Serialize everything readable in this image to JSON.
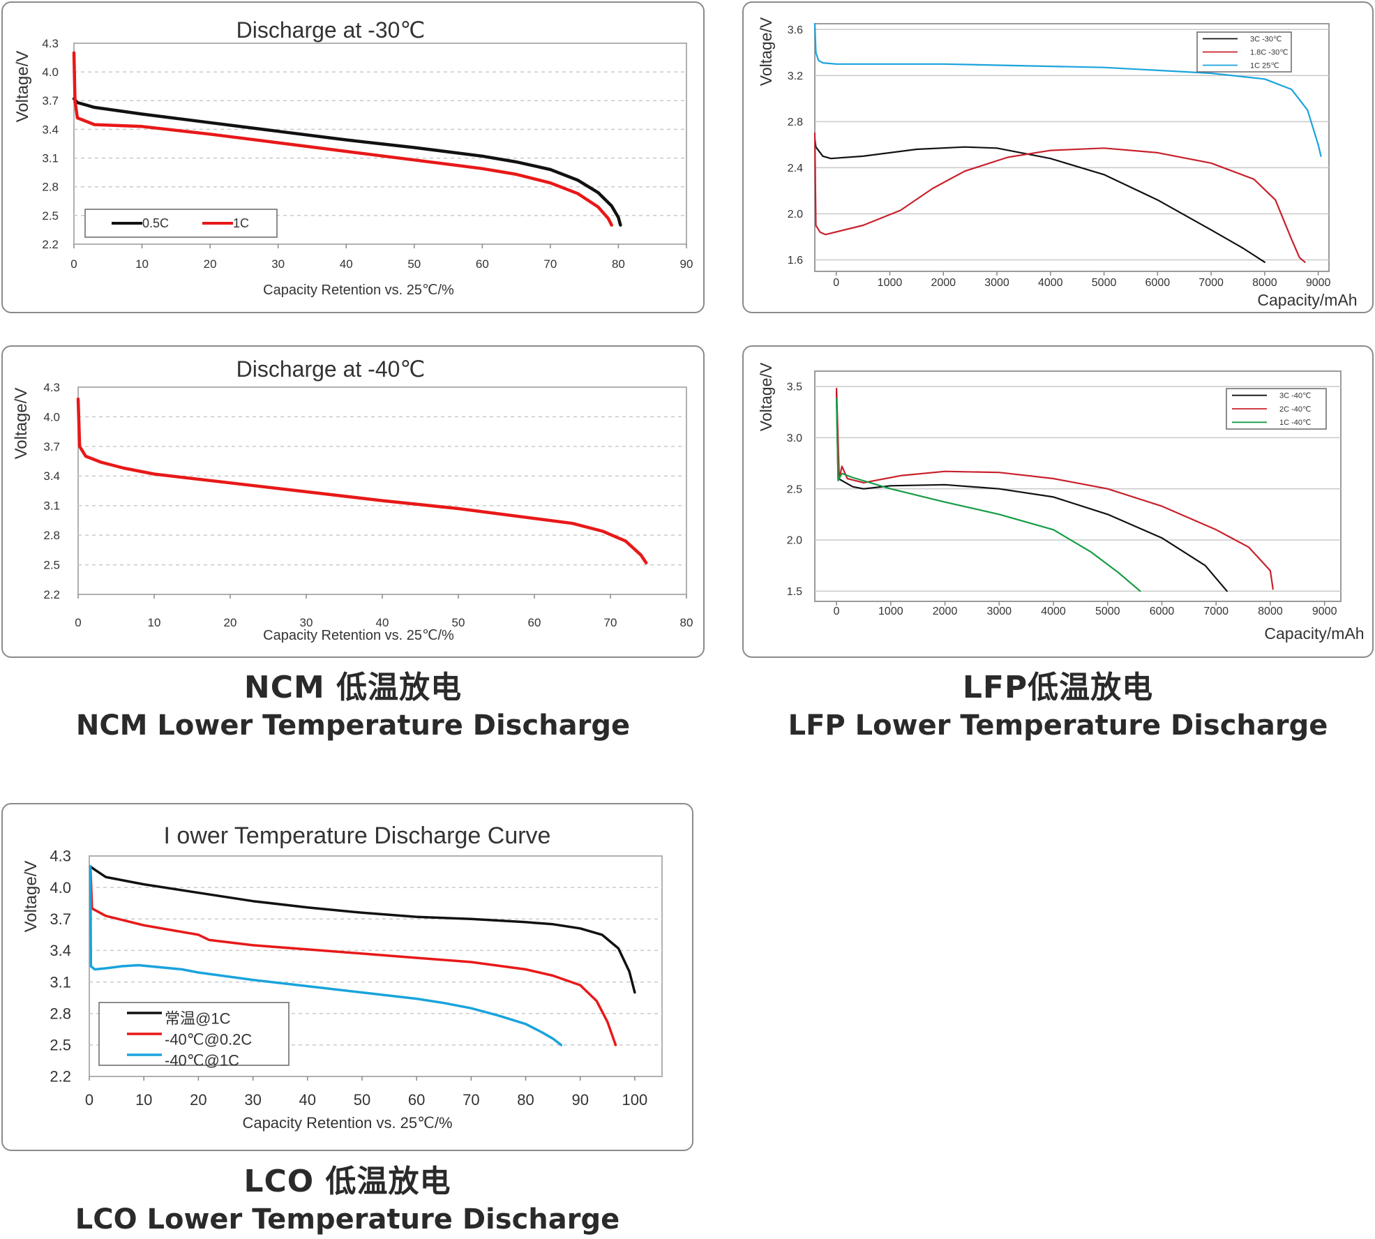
{
  "captions": {
    "ncm": {
      "cn": "NCM 低温放电",
      "en": "NCM Lower Temperature Discharge"
    },
    "lfp": {
      "cn": "LFP低温放电",
      "en": "LFP Lower Temperature Discharge"
    },
    "lco": {
      "cn": "LCO 低温放电",
      "en": "LCO Lower Temperature Discharge"
    }
  },
  "colors": {
    "black": "#111111",
    "red": "#e81818",
    "blue": "#19a3dc",
    "dkred": "#c8202a",
    "green": "#159c45",
    "grid": "#c9c9c9"
  },
  "chart_data": [
    {
      "id": "ncm30",
      "type": "line",
      "title": "Discharge at -30℃",
      "xlabel": "Capacity Retention vs. 25℃/%",
      "ylabel": "Voltage/V",
      "xlim": [
        0,
        90
      ],
      "ylim": [
        2.2,
        4.3
      ],
      "xticks": [
        "0",
        "10",
        "20",
        "30",
        "40",
        "50",
        "60",
        "70",
        "80",
        "90"
      ],
      "yticks": [
        "4.3",
        "4.0",
        "3.7",
        "3.4",
        "3.1",
        "2.8",
        "2.5",
        "2.2"
      ],
      "legend": [
        "0.5C",
        "1C"
      ],
      "series": [
        {
          "name": "0.5C",
          "color": "black",
          "points": [
            [
              0,
              3.72
            ],
            [
              0.5,
              3.68
            ],
            [
              3,
              3.63
            ],
            [
              10,
              3.56
            ],
            [
              20,
              3.47
            ],
            [
              30,
              3.38
            ],
            [
              40,
              3.29
            ],
            [
              50,
              3.21
            ],
            [
              60,
              3.12
            ],
            [
              65,
              3.06
            ],
            [
              70,
              2.98
            ],
            [
              74,
              2.87
            ],
            [
              77,
              2.74
            ],
            [
              79,
              2.6
            ],
            [
              80,
              2.48
            ],
            [
              80.3,
              2.4
            ]
          ]
        },
        {
          "name": "1C",
          "color": "red",
          "points": [
            [
              0,
              4.2
            ],
            [
              0.15,
              3.7
            ],
            [
              0.5,
              3.52
            ],
            [
              3,
              3.45
            ],
            [
              10,
              3.43
            ],
            [
              20,
              3.35
            ],
            [
              30,
              3.26
            ],
            [
              40,
              3.17
            ],
            [
              50,
              3.08
            ],
            [
              60,
              2.99
            ],
            [
              65,
              2.93
            ],
            [
              70,
              2.84
            ],
            [
              74,
              2.73
            ],
            [
              77,
              2.59
            ],
            [
              78.5,
              2.47
            ],
            [
              79,
              2.4
            ]
          ]
        }
      ]
    },
    {
      "id": "ncm40",
      "type": "line",
      "title": "Discharge at -40℃",
      "xlabel": "Capacity Retention vs. 25℃/%",
      "ylabel": "Voltage/V",
      "xlim": [
        0,
        80
      ],
      "ylim": [
        2.2,
        4.3
      ],
      "xticks": [
        "0",
        "10",
        "20",
        "30",
        "40",
        "50",
        "60",
        "70",
        "80"
      ],
      "yticks": [
        "4.3",
        "4.0",
        "3.7",
        "3.4",
        "3.1",
        "2.8",
        "2.5",
        "2.2"
      ],
      "legend": [],
      "series": [
        {
          "name": "1C",
          "color": "red",
          "points": [
            [
              0,
              4.18
            ],
            [
              0.2,
              3.7
            ],
            [
              1,
              3.6
            ],
            [
              3,
              3.54
            ],
            [
              6,
              3.48
            ],
            [
              10,
              3.42
            ],
            [
              20,
              3.33
            ],
            [
              30,
              3.24
            ],
            [
              40,
              3.15
            ],
            [
              50,
              3.07
            ],
            [
              60,
              2.97
            ],
            [
              65,
              2.92
            ],
            [
              69,
              2.84
            ],
            [
              72,
              2.74
            ],
            [
              74,
              2.6
            ],
            [
              74.7,
              2.52
            ]
          ]
        }
      ]
    },
    {
      "id": "lfp30",
      "type": "line",
      "title": "",
      "xlabel": "Capacity/mAh",
      "ylabel": "Voltage/V",
      "xlim": [
        -400,
        9200
      ],
      "ylim": [
        1.5,
        3.65
      ],
      "gridYValues": [
        1.6,
        2.0,
        2.4,
        2.8,
        3.2,
        3.6
      ],
      "xticks": [
        "0",
        "1000",
        "2000",
        "3000",
        "4000",
        "5000",
        "6000",
        "7000",
        "8000",
        "9000"
      ],
      "xtickValues": [
        0,
        1000,
        2000,
        3000,
        4000,
        5000,
        6000,
        7000,
        8000,
        9000
      ],
      "yticks": [
        "3.6",
        "3.2",
        "2.8",
        "2.4",
        "2.0",
        "1.6"
      ],
      "ytickValues": [
        3.6,
        3.2,
        2.8,
        2.4,
        2.0,
        1.6
      ],
      "legend": [
        "3C  -30℃",
        "1.8C  -30℃",
        "1C  25℃"
      ],
      "series": [
        {
          "name": "3C  -30℃",
          "color": "black",
          "points": [
            [
              -400,
              2.65
            ],
            [
              -380,
              2.58
            ],
            [
              -250,
              2.5
            ],
            [
              -100,
              2.48
            ],
            [
              500,
              2.5
            ],
            [
              1500,
              2.56
            ],
            [
              2400,
              2.58
            ],
            [
              3000,
              2.57
            ],
            [
              4000,
              2.48
            ],
            [
              5000,
              2.34
            ],
            [
              6000,
              2.12
            ],
            [
              7000,
              1.86
            ],
            [
              7600,
              1.7
            ],
            [
              8000,
              1.58
            ]
          ]
        },
        {
          "name": "1.8C  -30℃",
          "color": "dkred",
          "points": [
            [
              -400,
              2.7
            ],
            [
              -380,
              1.9
            ],
            [
              -300,
              1.84
            ],
            [
              -200,
              1.82
            ],
            [
              500,
              1.9
            ],
            [
              1200,
              2.03
            ],
            [
              1800,
              2.22
            ],
            [
              2400,
              2.37
            ],
            [
              3200,
              2.49
            ],
            [
              4000,
              2.55
            ],
            [
              5000,
              2.57
            ],
            [
              6000,
              2.53
            ],
            [
              7000,
              2.44
            ],
            [
              7800,
              2.3
            ],
            [
              8200,
              2.12
            ],
            [
              8500,
              1.78
            ],
            [
              8650,
              1.62
            ],
            [
              8750,
              1.58
            ]
          ]
        },
        {
          "name": "1C  25℃",
          "color": "blue",
          "points": [
            [
              -400,
              3.65
            ],
            [
              -380,
              3.4
            ],
            [
              -330,
              3.33
            ],
            [
              -250,
              3.31
            ],
            [
              0,
              3.3
            ],
            [
              2000,
              3.3
            ],
            [
              5000,
              3.27
            ],
            [
              7000,
              3.22
            ],
            [
              8000,
              3.17
            ],
            [
              8500,
              3.08
            ],
            [
              8800,
              2.9
            ],
            [
              9000,
              2.6
            ],
            [
              9050,
              2.5
            ]
          ]
        }
      ]
    },
    {
      "id": "lfp40",
      "type": "line",
      "title": "",
      "xlabel": "Capacity/mAh",
      "ylabel": "Voltage/V",
      "xlim": [
        -400,
        9300
      ],
      "ylim": [
        1.4,
        3.65
      ],
      "gridYValues": [
        1.5,
        2.0,
        2.5,
        3.0,
        3.5
      ],
      "xticks": [
        "0",
        "1000",
        "2000",
        "3000",
        "4000",
        "5000",
        "6000",
        "7000",
        "8000",
        "9000"
      ],
      "xtickValues": [
        0,
        1000,
        2000,
        3000,
        4000,
        5000,
        6000,
        7000,
        8000,
        9000
      ],
      "yticks": [
        "3.5",
        "3.0",
        "2.5",
        "2.0",
        "1.5"
      ],
      "ytickValues": [
        3.5,
        3.0,
        2.5,
        2.0,
        1.5
      ],
      "legend": [
        "3C  -40℃",
        "2C  -40℃",
        "1C  -40℃"
      ],
      "series": [
        {
          "name": "3C  -40℃",
          "color": "black",
          "points": [
            [
              0,
              3.45
            ],
            [
              30,
              2.6
            ],
            [
              100,
              2.58
            ],
            [
              300,
              2.52
            ],
            [
              500,
              2.5
            ],
            [
              1000,
              2.53
            ],
            [
              2000,
              2.54
            ],
            [
              3000,
              2.5
            ],
            [
              4000,
              2.42
            ],
            [
              5000,
              2.25
            ],
            [
              6000,
              2.02
            ],
            [
              6800,
              1.75
            ],
            [
              7200,
              1.5
            ]
          ]
        },
        {
          "name": "2C  -40℃",
          "color": "dkred",
          "points": [
            [
              0,
              3.48
            ],
            [
              50,
              2.6
            ],
            [
              100,
              2.72
            ],
            [
              200,
              2.6
            ],
            [
              500,
              2.56
            ],
            [
              1200,
              2.63
            ],
            [
              2000,
              2.67
            ],
            [
              3000,
              2.66
            ],
            [
              4000,
              2.6
            ],
            [
              5000,
              2.5
            ],
            [
              6000,
              2.33
            ],
            [
              7000,
              2.1
            ],
            [
              7600,
              1.93
            ],
            [
              8000,
              1.7
            ],
            [
              8050,
              1.52
            ]
          ]
        },
        {
          "name": "1C  -40℃",
          "color": "green",
          "points": [
            [
              0,
              3.38
            ],
            [
              30,
              2.58
            ],
            [
              100,
              2.65
            ],
            [
              300,
              2.61
            ],
            [
              1000,
              2.5
            ],
            [
              2000,
              2.37
            ],
            [
              3000,
              2.25
            ],
            [
              4000,
              2.1
            ],
            [
              4700,
              1.88
            ],
            [
              5200,
              1.68
            ],
            [
              5600,
              1.5
            ]
          ]
        }
      ]
    },
    {
      "id": "lco",
      "type": "line",
      "title": "I ower Temperature Discharge Curve",
      "xlabel": "Capacity Retention vs. 25℃/%",
      "ylabel": "Voltage/V",
      "xlim": [
        0,
        105
      ],
      "ylim": [
        2.2,
        4.3
      ],
      "xticks": [
        "0",
        "10",
        "20",
        "30",
        "40",
        "50",
        "60",
        "70",
        "80",
        "90",
        "100"
      ],
      "yticks": [
        "4.3",
        "4.0",
        "3.7",
        "3.4",
        "3.1",
        "2.8",
        "2.5",
        "2.2"
      ],
      "legend": [
        "常温@1C",
        "-40℃@0.2C",
        "-40℃@1C"
      ],
      "series": [
        {
          "name": "常温@1C",
          "color": "black",
          "points": [
            [
              0.2,
              4.2
            ],
            [
              1,
              4.17
            ],
            [
              3,
              4.1
            ],
            [
              5,
              4.08
            ],
            [
              10,
              4.03
            ],
            [
              20,
              3.95
            ],
            [
              30,
              3.87
            ],
            [
              40,
              3.81
            ],
            [
              50,
              3.76
            ],
            [
              60,
              3.72
            ],
            [
              70,
              3.7
            ],
            [
              80,
              3.67
            ],
            [
              85,
              3.65
            ],
            [
              90,
              3.61
            ],
            [
              94,
              3.55
            ],
            [
              97,
              3.42
            ],
            [
              99,
              3.2
            ],
            [
              100,
              3.0
            ]
          ]
        },
        {
          "name": "-40℃@0.2C",
          "color": "red",
          "points": [
            [
              0.2,
              4.2
            ],
            [
              0.5,
              3.8
            ],
            [
              3,
              3.73
            ],
            [
              10,
              3.64
            ],
            [
              20,
              3.55
            ],
            [
              22,
              3.5
            ],
            [
              30,
              3.45
            ],
            [
              40,
              3.41
            ],
            [
              50,
              3.37
            ],
            [
              60,
              3.33
            ],
            [
              70,
              3.29
            ],
            [
              80,
              3.22
            ],
            [
              85,
              3.16
            ],
            [
              90,
              3.07
            ],
            [
              93,
              2.92
            ],
            [
              95,
              2.72
            ],
            [
              96.5,
              2.5
            ]
          ]
        },
        {
          "name": "-40℃@1C",
          "color": "blue",
          "points": [
            [
              0.2,
              4.2
            ],
            [
              0.3,
              3.25
            ],
            [
              1,
              3.22
            ],
            [
              3,
              3.23
            ],
            [
              6,
              3.25
            ],
            [
              9,
              3.26
            ],
            [
              17,
              3.22
            ],
            [
              20,
              3.19
            ],
            [
              30,
              3.12
            ],
            [
              40,
              3.06
            ],
            [
              50,
              3.0
            ],
            [
              60,
              2.94
            ],
            [
              65,
              2.9
            ],
            [
              70,
              2.85
            ],
            [
              75,
              2.78
            ],
            [
              80,
              2.7
            ],
            [
              83,
              2.62
            ],
            [
              85,
              2.56
            ],
            [
              86.5,
              2.5
            ]
          ]
        }
      ]
    }
  ]
}
